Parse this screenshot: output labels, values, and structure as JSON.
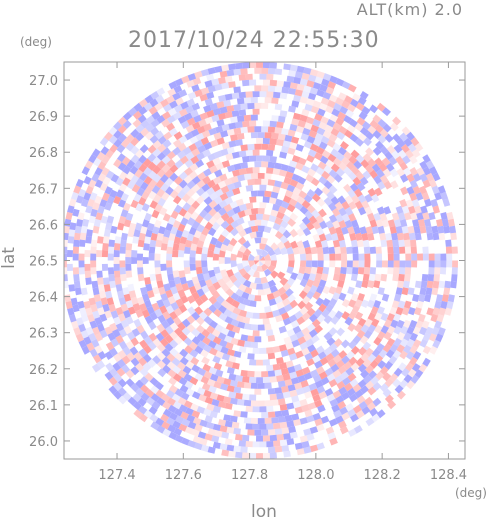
{
  "header": {
    "alt_label": "ALT(km) 2.0",
    "datetime": "2017/10/24 22:55:30",
    "lat_unit": "(deg)",
    "lon_unit": "(deg)"
  },
  "chart_data": {
    "type": "heatmap",
    "title": "2017/10/24 22:55:30",
    "subtitle": "ALT(km) 2.0",
    "xlabel": "lon",
    "ylabel": "lat",
    "xunit": "(deg)",
    "yunit": "(deg)",
    "xlim": [
      127.24,
      128.45
    ],
    "ylim": [
      25.95,
      27.05
    ],
    "xticks": [
      "127.4",
      "127.6",
      "127.8",
      "128.0",
      "128.2",
      "128.4"
    ],
    "yticks": [
      "26.0",
      "26.1",
      "26.2",
      "26.3",
      "26.4",
      "26.5",
      "26.6",
      "26.7",
      "26.8",
      "26.9",
      "27.0"
    ],
    "center": {
      "lon": 127.83,
      "lat": 26.5
    },
    "radius_deg_lat": 0.55,
    "grid": false,
    "colors": {
      "positive": "#ff9e9e",
      "negative": "#a8a8ff",
      "neutral": "#ffffff",
      "frame": "#9a9a9a"
    }
  }
}
